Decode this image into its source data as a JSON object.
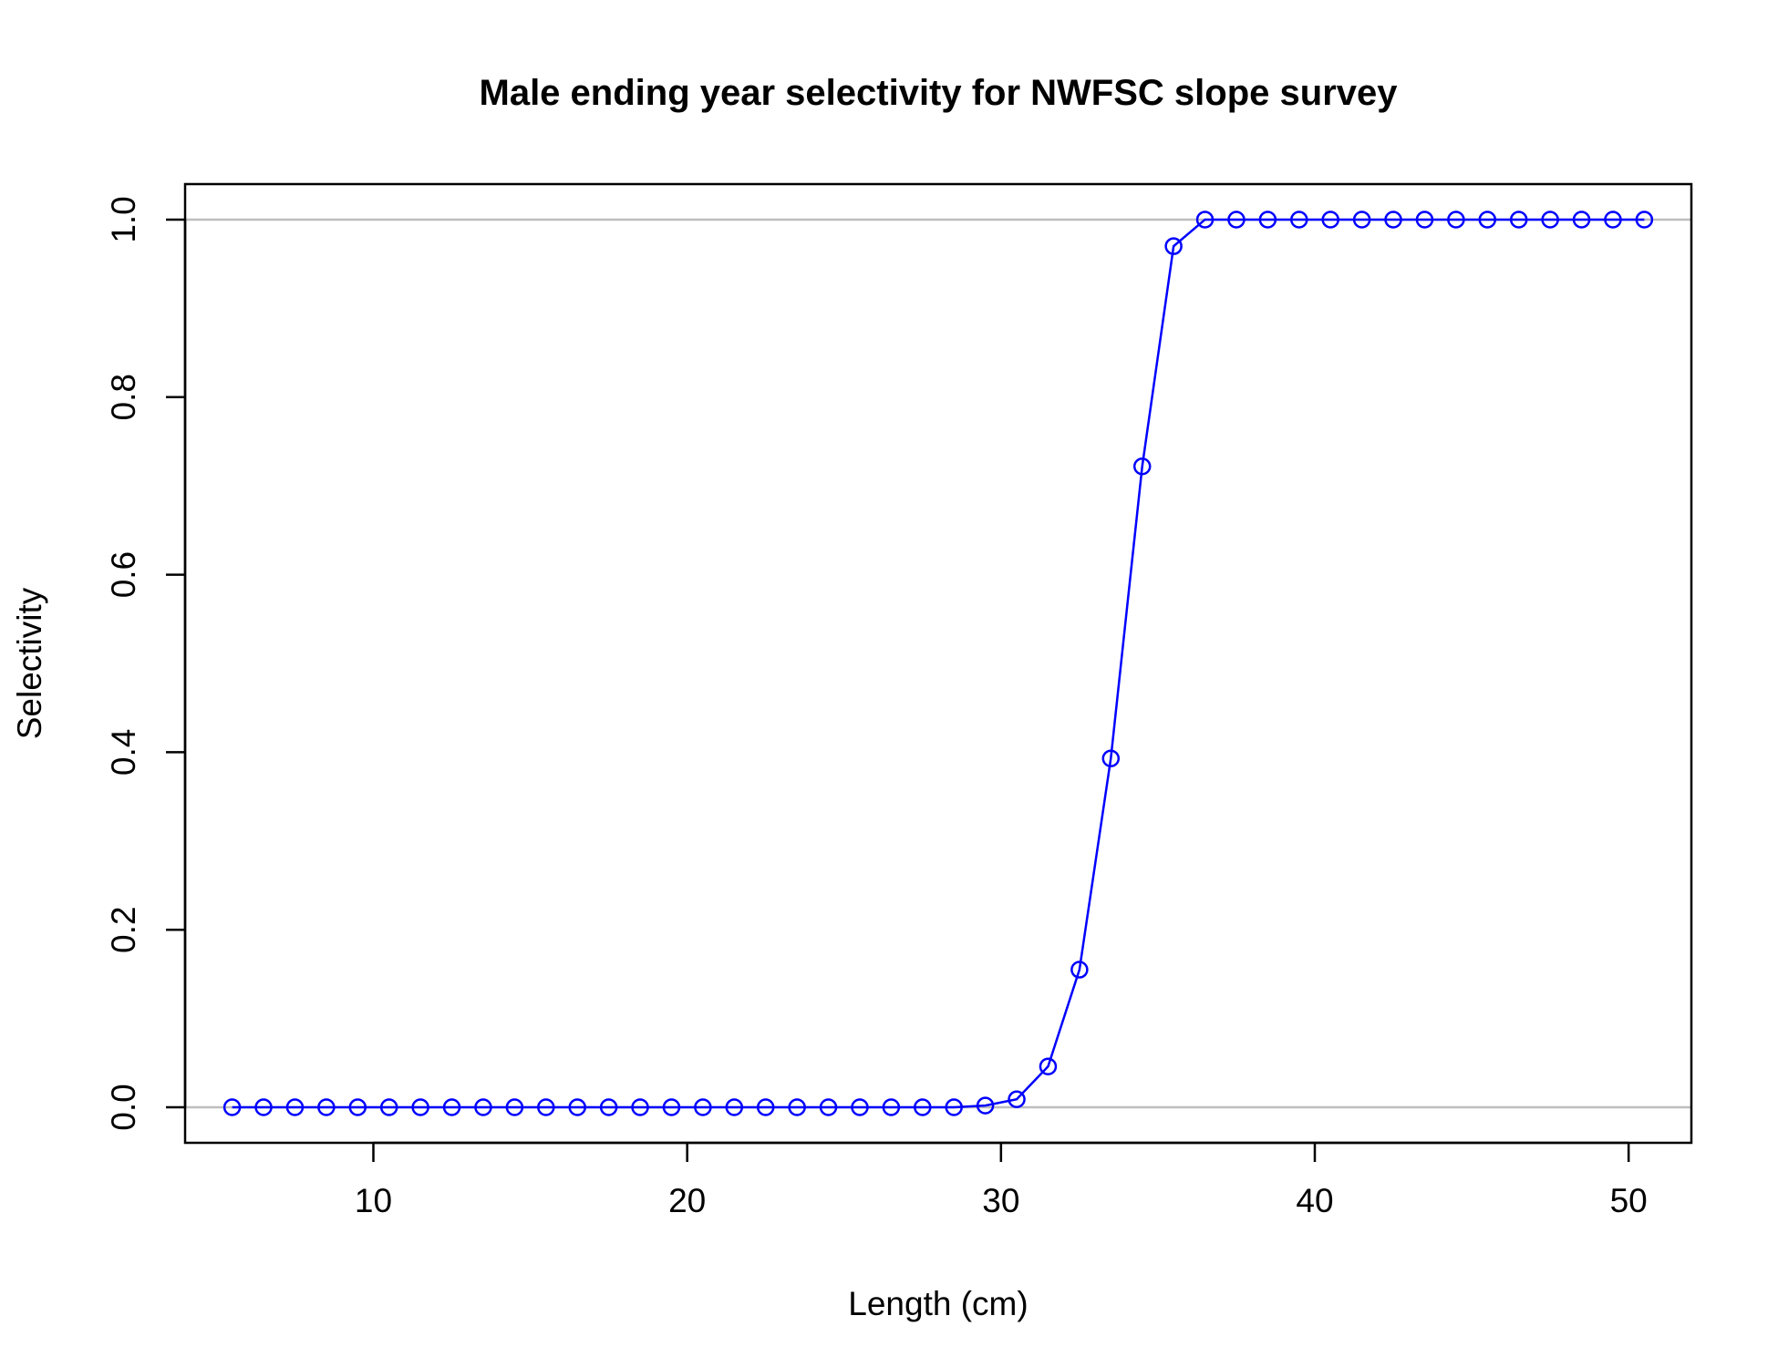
{
  "chart_data": {
    "type": "line",
    "title": "Male ending year selectivity for NWFSC slope survey",
    "xlabel": "Length (cm)",
    "ylabel": "Selectivity",
    "xlim": [
      4,
      52
    ],
    "ylim": [
      -0.04,
      1.04
    ],
    "x_ticks": [
      "10",
      "20",
      "30",
      "40",
      "50"
    ],
    "y_ticks": [
      "0.0",
      "0.2",
      "0.4",
      "0.6",
      "0.8",
      "1.0"
    ],
    "reference_lines_y": [
      0,
      1
    ],
    "grid": false,
    "legend": "none",
    "colors": {
      "series": "#0000ff",
      "reference": "#bebebe",
      "axis": "#000000"
    },
    "series": [
      {
        "marker": "open-circle",
        "x": [
          5.5,
          6.5,
          7.5,
          8.5,
          9.5,
          10.5,
          11.5,
          12.5,
          13.5,
          14.5,
          15.5,
          16.5,
          17.5,
          18.5,
          19.5,
          20.5,
          21.5,
          22.5,
          23.5,
          24.5,
          25.5,
          26.5,
          27.5,
          28.5,
          29.5,
          30.5,
          31.5,
          32.5,
          33.5,
          34.5,
          35.5,
          36.5,
          37.5,
          38.5,
          39.5,
          40.5,
          41.5,
          42.5,
          43.5,
          44.5,
          45.5,
          46.5,
          47.5,
          48.5,
          49.5,
          50.5
        ],
        "values": [
          0,
          0,
          0,
          0,
          0,
          0,
          0,
          0,
          0,
          0,
          0,
          0,
          0,
          0,
          0,
          0,
          0,
          0,
          0,
          0,
          0,
          0,
          0,
          0,
          0.002,
          0.009,
          0.046,
          0.155,
          0.393,
          0.722,
          0.97,
          1.0,
          1.0,
          1.0,
          1.0,
          1.0,
          1.0,
          1.0,
          1.0,
          1.0,
          1.0,
          1.0,
          1.0,
          1.0,
          1.0,
          1.0
        ]
      }
    ]
  }
}
